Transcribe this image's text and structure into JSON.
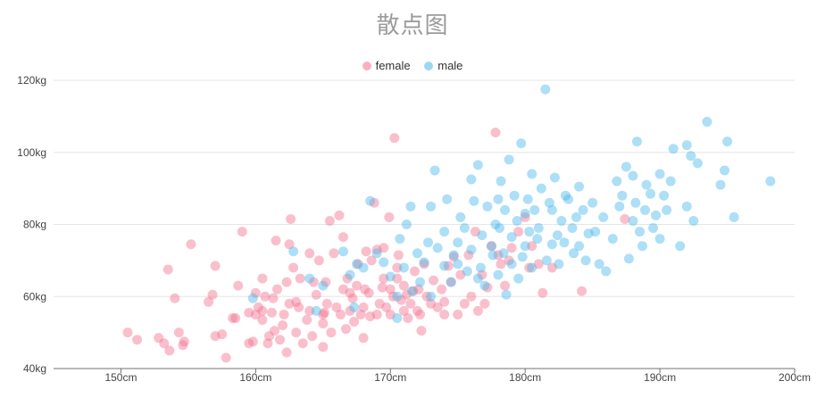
{
  "chart_data": {
    "type": "scatter",
    "title": "散点图",
    "xlabel": "",
    "ylabel": "",
    "xlim": [
      145,
      200
    ],
    "ylim": [
      40,
      120
    ],
    "x_ticks": [
      150,
      160,
      170,
      180,
      190,
      200
    ],
    "y_ticks": [
      40,
      60,
      80,
      100,
      120
    ],
    "x_tick_labels": [
      "150cm",
      "160cm",
      "170cm",
      "180cm",
      "190cm",
      "200cm"
    ],
    "y_tick_labels": [
      "40kg",
      "60kg",
      "80kg",
      "100kg",
      "120kg"
    ],
    "grid": "horizontal",
    "legend_position": "top-center",
    "series": [
      {
        "name": "female",
        "color": "#f4708f",
        "points": [
          [
            150.5,
            50
          ],
          [
            151.2,
            48
          ],
          [
            152.8,
            48.5
          ],
          [
            153.2,
            47
          ],
          [
            153.6,
            45
          ],
          [
            153.5,
            67.5
          ],
          [
            154,
            59.5
          ],
          [
            154.3,
            50
          ],
          [
            154.6,
            46.5
          ],
          [
            154.7,
            47.5
          ],
          [
            155.2,
            74.5
          ],
          [
            156.5,
            58.5
          ],
          [
            156.8,
            60.5
          ],
          [
            157,
            68.5
          ],
          [
            157,
            49
          ],
          [
            157.5,
            49.5
          ],
          [
            157.8,
            43
          ],
          [
            158.3,
            54
          ],
          [
            158.5,
            54
          ],
          [
            158.7,
            63
          ],
          [
            159,
            78
          ],
          [
            159.5,
            55.5
          ],
          [
            159.5,
            47
          ],
          [
            159.8,
            47.5
          ],
          [
            160,
            61
          ],
          [
            160,
            55
          ],
          [
            160.2,
            57
          ],
          [
            160.5,
            53.5
          ],
          [
            160.5,
            56
          ],
          [
            160.5,
            65
          ],
          [
            160.7,
            60
          ],
          [
            160.9,
            47
          ],
          [
            161,
            49
          ],
          [
            161.2,
            55.5
          ],
          [
            161.3,
            59.5
          ],
          [
            161.4,
            50.5
          ],
          [
            161.5,
            75.5
          ],
          [
            161.6,
            62
          ],
          [
            161.8,
            48
          ],
          [
            162,
            52
          ],
          [
            162.1,
            55
          ],
          [
            162.3,
            64
          ],
          [
            162.3,
            44.5
          ],
          [
            162.5,
            58
          ],
          [
            162.5,
            74.5
          ],
          [
            162.6,
            81.5
          ],
          [
            162.8,
            68
          ],
          [
            163,
            58.5
          ],
          [
            163,
            50
          ],
          [
            163.2,
            57
          ],
          [
            163.3,
            65
          ],
          [
            163.5,
            47
          ],
          [
            163.8,
            53.5
          ],
          [
            164,
            56
          ],
          [
            164,
            72
          ],
          [
            164.2,
            49
          ],
          [
            164.3,
            64
          ],
          [
            164.5,
            60.5
          ],
          [
            164.7,
            70
          ],
          [
            165,
            55
          ],
          [
            165,
            46
          ],
          [
            165,
            52.5
          ],
          [
            165.1,
            55.5
          ],
          [
            165.2,
            64
          ],
          [
            165.3,
            58
          ],
          [
            165.5,
            81
          ],
          [
            165.6,
            50
          ],
          [
            165.8,
            72
          ],
          [
            166,
            57
          ],
          [
            166.2,
            82.5
          ],
          [
            166.3,
            55
          ],
          [
            166.5,
            62
          ],
          [
            166.5,
            76.5
          ],
          [
            166.7,
            51
          ],
          [
            166.8,
            65
          ],
          [
            167,
            56
          ],
          [
            167,
            61
          ],
          [
            167.2,
            59.5
          ],
          [
            167.3,
            53
          ],
          [
            167.5,
            63
          ],
          [
            167.6,
            69
          ],
          [
            167.8,
            55
          ],
          [
            168,
            57
          ],
          [
            168,
            48.5
          ],
          [
            168.1,
            62
          ],
          [
            168.2,
            72.5
          ],
          [
            168.4,
            61
          ],
          [
            168.5,
            54.5
          ],
          [
            168.6,
            70
          ],
          [
            168.8,
            86
          ],
          [
            169,
            73
          ],
          [
            169,
            55
          ],
          [
            169.2,
            58
          ],
          [
            169.4,
            62.5
          ],
          [
            169.5,
            65
          ],
          [
            169.5,
            73.5
          ],
          [
            169.7,
            57
          ],
          [
            169.9,
            82
          ],
          [
            170,
            55
          ],
          [
            170,
            62
          ],
          [
            170.2,
            60
          ],
          [
            170.3,
            104
          ],
          [
            170.5,
            65
          ],
          [
            170.5,
            68
          ],
          [
            170.6,
            71.5
          ],
          [
            170.8,
            59
          ],
          [
            171,
            63
          ],
          [
            171,
            56
          ],
          [
            171.2,
            60.5
          ],
          [
            171.3,
            54
          ],
          [
            171.5,
            58
          ],
          [
            171.7,
            61.5
          ],
          [
            171.8,
            67
          ],
          [
            172,
            56
          ],
          [
            172.1,
            62
          ],
          [
            172.2,
            55
          ],
          [
            172.3,
            50.5
          ],
          [
            172.5,
            69
          ],
          [
            172.7,
            60
          ],
          [
            173,
            58
          ],
          [
            173.2,
            64.5
          ],
          [
            173.5,
            57
          ],
          [
            173.8,
            62
          ],
          [
            174,
            58.5
          ],
          [
            174,
            55
          ],
          [
            174.3,
            68.5
          ],
          [
            174.5,
            64
          ],
          [
            174.7,
            71
          ],
          [
            175,
            55
          ],
          [
            175.2,
            66
          ],
          [
            175.5,
            58
          ],
          [
            175.8,
            71.5
          ],
          [
            176,
            60
          ],
          [
            176.3,
            78
          ],
          [
            176.5,
            56
          ],
          [
            176.8,
            66
          ],
          [
            177,
            58
          ],
          [
            177.2,
            62.5
          ],
          [
            177.5,
            74
          ],
          [
            177.8,
            105.5
          ],
          [
            178,
            71.5
          ],
          [
            178.2,
            69
          ],
          [
            178.5,
            63
          ],
          [
            178.8,
            70
          ],
          [
            179,
            73.5
          ],
          [
            179.5,
            78
          ],
          [
            180,
            82
          ],
          [
            180.3,
            68
          ],
          [
            180.5,
            74
          ],
          [
            181,
            69
          ],
          [
            181.3,
            61
          ],
          [
            182,
            68
          ],
          [
            184.2,
            61.5
          ],
          [
            187.4,
            81.5
          ]
        ]
      },
      {
        "name": "male",
        "color": "#4ab8ea",
        "points": [
          [
            159.8,
            59.5
          ],
          [
            162.8,
            72.5
          ],
          [
            164,
            65
          ],
          [
            164.5,
            56
          ],
          [
            165,
            63
          ],
          [
            166.5,
            72.5
          ],
          [
            167,
            66
          ],
          [
            167.3,
            57
          ],
          [
            167.5,
            69
          ],
          [
            168,
            68
          ],
          [
            168.5,
            86.5
          ],
          [
            169,
            72
          ],
          [
            169.5,
            69.5
          ],
          [
            170,
            65.5
          ],
          [
            170.5,
            60
          ],
          [
            170.5,
            54
          ],
          [
            170.7,
            76
          ],
          [
            171,
            68
          ],
          [
            171.2,
            80
          ],
          [
            171.5,
            85
          ],
          [
            171.6,
            61.5
          ],
          [
            172,
            72
          ],
          [
            172.2,
            64
          ],
          [
            172.5,
            69.5
          ],
          [
            172.8,
            75
          ],
          [
            173,
            60
          ],
          [
            173,
            85
          ],
          [
            173.3,
            95
          ],
          [
            173.5,
            73.5
          ],
          [
            174,
            68.5
          ],
          [
            174,
            78
          ],
          [
            174.2,
            87
          ],
          [
            174.5,
            64
          ],
          [
            174.7,
            71.5
          ],
          [
            175,
            69
          ],
          [
            175,
            75
          ],
          [
            175.2,
            82
          ],
          [
            175.5,
            79
          ],
          [
            175.7,
            67
          ],
          [
            176,
            92.5
          ],
          [
            176,
            73
          ],
          [
            176.2,
            86.5
          ],
          [
            176.5,
            96.5
          ],
          [
            176.5,
            65
          ],
          [
            176.7,
            68
          ],
          [
            176.8,
            77
          ],
          [
            177,
            63
          ],
          [
            177.2,
            85
          ],
          [
            177.5,
            74
          ],
          [
            177.6,
            71.5
          ],
          [
            177.8,
            80
          ],
          [
            178,
            87
          ],
          [
            178,
            66
          ],
          [
            178.1,
            79
          ],
          [
            178.2,
            92
          ],
          [
            178.4,
            72
          ],
          [
            178.5,
            84
          ],
          [
            178.6,
            60.5
          ],
          [
            178.8,
            98
          ],
          [
            179,
            69
          ],
          [
            179,
            76.5
          ],
          [
            179.2,
            88
          ],
          [
            179.4,
            81
          ],
          [
            179.5,
            65
          ],
          [
            179.7,
            102.5
          ],
          [
            179.8,
            71
          ],
          [
            180,
            83
          ],
          [
            180,
            74
          ],
          [
            180.2,
            87
          ],
          [
            180.3,
            78
          ],
          [
            180.5,
            68
          ],
          [
            180.5,
            94
          ],
          [
            180.7,
            84
          ],
          [
            180.9,
            76
          ],
          [
            181,
            79
          ],
          [
            181.2,
            90
          ],
          [
            181.5,
            117.5
          ],
          [
            181.6,
            70
          ],
          [
            181.8,
            86
          ],
          [
            182,
            84
          ],
          [
            182,
            74.5
          ],
          [
            182.2,
            93
          ],
          [
            182.4,
            77
          ],
          [
            182.5,
            69
          ],
          [
            182.7,
            81
          ],
          [
            182.9,
            75
          ],
          [
            183,
            88
          ],
          [
            183.2,
            87
          ],
          [
            183.5,
            79
          ],
          [
            183.6,
            72
          ],
          [
            183.8,
            82
          ],
          [
            184,
            74
          ],
          [
            184,
            90.5
          ],
          [
            184.3,
            84
          ],
          [
            184.5,
            70
          ],
          [
            184.7,
            77.5
          ],
          [
            185,
            86
          ],
          [
            185.2,
            78
          ],
          [
            185.5,
            69
          ],
          [
            185.8,
            82
          ],
          [
            186,
            67
          ],
          [
            186.5,
            76
          ],
          [
            186.8,
            92
          ],
          [
            187,
            85
          ],
          [
            187.2,
            88
          ],
          [
            187.5,
            96
          ],
          [
            187.7,
            70.5
          ],
          [
            188,
            81
          ],
          [
            188,
            93.5
          ],
          [
            188.2,
            86
          ],
          [
            188.3,
            103
          ],
          [
            188.5,
            78
          ],
          [
            188.7,
            74
          ],
          [
            188.9,
            84
          ],
          [
            189,
            91
          ],
          [
            189.3,
            88.5
          ],
          [
            189.5,
            79
          ],
          [
            189.7,
            82.5
          ],
          [
            190,
            76
          ],
          [
            190,
            94
          ],
          [
            190.3,
            88
          ],
          [
            190.5,
            84
          ],
          [
            190.8,
            92
          ],
          [
            191,
            101
          ],
          [
            191.5,
            74
          ],
          [
            192,
            85
          ],
          [
            192,
            102
          ],
          [
            192.3,
            99
          ],
          [
            192.5,
            81
          ],
          [
            192.8,
            97
          ],
          [
            193.5,
            108.5
          ],
          [
            194.5,
            91
          ],
          [
            194.8,
            95
          ],
          [
            195,
            103
          ],
          [
            195.5,
            82
          ],
          [
            198.2,
            92
          ]
        ]
      }
    ]
  }
}
